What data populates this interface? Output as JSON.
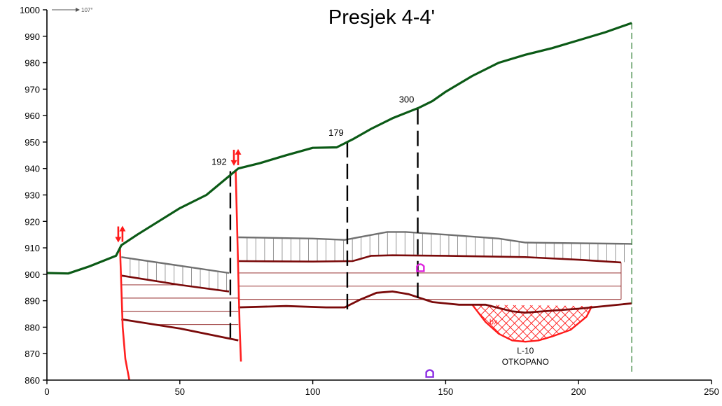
{
  "title": "Presjek 4-4'",
  "direction_label": "107°",
  "chart_data": {
    "type": "line",
    "xlim": [
      0,
      250
    ],
    "ylim": [
      860,
      1000
    ],
    "x_ticks": [
      "0",
      "50",
      "100",
      "150",
      "200",
      "250"
    ],
    "y_ticks": [
      "860",
      "870",
      "880",
      "890",
      "900",
      "910",
      "920",
      "930",
      "940",
      "950",
      "960",
      "970",
      "980",
      "990",
      "1000"
    ],
    "terrain": {
      "color": "#0b5a16",
      "x": [
        0,
        8,
        16,
        26,
        28,
        34,
        42,
        50,
        60,
        66,
        72,
        80,
        90,
        100,
        109,
        115,
        122,
        130,
        140,
        145,
        150,
        160,
        170,
        180,
        190,
        200,
        210,
        220
      ],
      "y": [
        900.5,
        900.3,
        903,
        907,
        911,
        915,
        920,
        925,
        930,
        935,
        940,
        942,
        945,
        947.8,
        948,
        951,
        955,
        959,
        963,
        965.5,
        969,
        975,
        980,
        983,
        985.5,
        988.5,
        991.5,
        995
      ]
    },
    "boreholes": [
      {
        "label": "192",
        "x": 69,
        "top": 939,
        "bottom": 876
      },
      {
        "label": "179",
        "x": 113,
        "top": 950,
        "bottom": 886
      },
      {
        "label": "300",
        "x": 139.5,
        "top": 962.5,
        "bottom": 890
      }
    ],
    "faults": [
      {
        "x": [
          27.5,
          28,
          28.5,
          29.5,
          31
        ],
        "y": [
          910,
          895,
          880,
          868,
          860
        ]
      },
      {
        "x": [
          71,
          71.5,
          72,
          72.5,
          73
        ],
        "y": [
          939.5,
          920,
          900,
          880,
          867
        ]
      }
    ],
    "fault_markers": [
      {
        "x": 27.5,
        "y": 912
      },
      {
        "x": 71,
        "y": 941
      }
    ],
    "cover_layer": {
      "color": "#707070",
      "segments": [
        {
          "top": {
            "x": [
              28,
              68.5
            ],
            "y": [
              906.5,
              900.5
            ]
          },
          "bottom": {
            "x": [
              28,
              50,
              68.5
            ],
            "y": [
              899.5,
              896,
              893.5
            ]
          }
        },
        {
          "top": {
            "x": [
              72,
              100,
              112,
              120,
              128,
              135,
              150,
              170,
              180,
              220
            ],
            "y": [
              914,
              913.5,
              913,
              914.5,
              916,
              916,
              915,
              913.5,
              912,
              911.5
            ]
          },
          "bottom": {
            "x": [
              72,
              100,
              115,
              122,
              130,
              150,
              180,
              200,
              220
            ],
            "y": [
              905,
              904.8,
              905,
              907,
              907.2,
              907,
              906.5,
              905.5,
              904.5
            ]
          }
        }
      ]
    },
    "coal_seam": {
      "color": "#7a0a0a",
      "segments": [
        {
          "top": {
            "x": [
              28,
              50,
              68.5
            ],
            "y": [
              899.5,
              896,
              893.5
            ]
          },
          "bottom": {
            "x": [
              28,
              50,
              72
            ],
            "y": [
              883,
              879.5,
              875
            ]
          },
          "hatch_y": [
            896,
            891,
            886,
            881
          ]
        },
        {
          "top": {
            "x": [
              72,
              100,
              115,
              122,
              130,
              150,
              180,
              200,
              216
            ],
            "y": [
              905,
              904.8,
              905,
              907,
              907.2,
              907,
              906.5,
              905.5,
              904.5
            ]
          },
          "bottom": {
            "x": [
              72,
              90,
              105,
              112,
              118,
              124,
              130,
              136,
              145,
              155,
              165,
              175,
              180,
              200,
              220
            ],
            "y": [
              887.5,
              888,
              887.5,
              887.5,
              890.5,
              893,
              893.5,
              892.5,
              889.5,
              888.5,
              888.5,
              886,
              885.5,
              887,
              889
            ]
          },
          "hatch_y": [
            900.5,
            895.5,
            890.5
          ],
          "hatch_x": [
            72,
            216
          ]
        }
      ]
    },
    "mined_out": {
      "color": "#ff1a1a",
      "x": [
        160,
        165,
        170,
        175,
        180,
        185,
        190,
        197,
        203,
        205
      ],
      "y": [
        888.5,
        882,
        877.5,
        875,
        874.5,
        875,
        876.5,
        879,
        884,
        888
      ],
      "tag": "bx",
      "tag_x": 168,
      "tag_y": 881,
      "label_lines": [
        "L-10",
        "OTKOPANO"
      ],
      "label_x": 180,
      "label_y": 870
    },
    "markers": [
      {
        "x": 140.5,
        "y": 902.5,
        "color": "#dd22dd"
      },
      {
        "x": 144,
        "y": 862.5,
        "color": "#8a2be2"
      }
    ],
    "section_end_x": 220
  }
}
